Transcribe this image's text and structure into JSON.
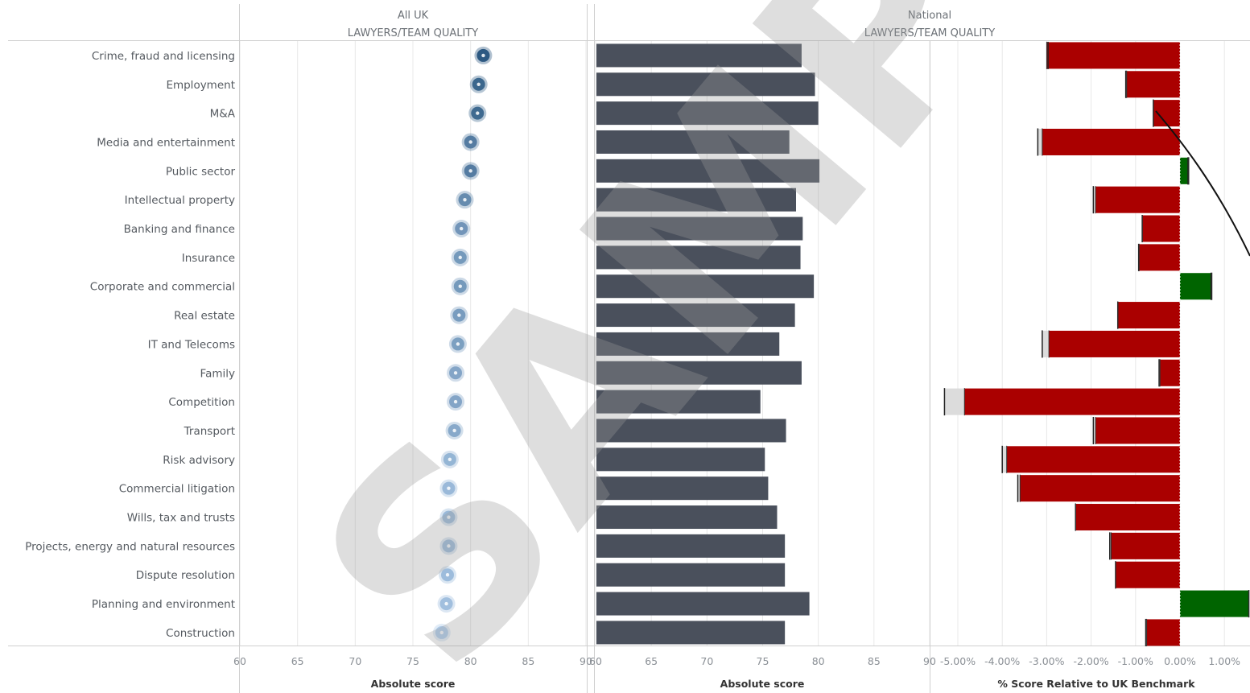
{
  "panels": {
    "left": {
      "top_label": "All UK",
      "sub_label": "LAWYERS/TEAM QUALITY",
      "axis_title": "Absolute score"
    },
    "right": {
      "top_label": "National",
      "sub_label": "LAWYERS/TEAM QUALITY"
    },
    "bars_axis_title": "Absolute score",
    "diff_axis_title": "% Score Relative to UK Benchmark"
  },
  "watermark": "SAMPLE",
  "colors": {
    "bar": "#4a505c",
    "negative": "#aa0000",
    "positive": "#006400",
    "dot_dark": "#1f4e79",
    "dot_light": "#a9c8e8",
    "grid": "#e8e8e8",
    "axis": "#cfcfcf"
  },
  "chart_data": [
    {
      "type": "scatter",
      "panel": "All UK",
      "xlabel": "Absolute score",
      "xlim": [
        60,
        90
      ],
      "ticks": [
        60,
        65,
        70,
        75,
        80,
        85,
        90
      ],
      "categories": [
        "Crime, fraud and licensing",
        "Employment",
        "M&A",
        "Media and entertainment",
        "Public sector",
        "Intellectual property",
        "Banking and finance",
        "Insurance",
        "Corporate and commercial",
        "Real estate",
        "IT and Telecoms",
        "Family",
        "Competition",
        "Transport",
        "Risk advisory",
        "Commercial litigation",
        "Wills, tax and trusts",
        "Projects, energy and natural resources",
        "Dispute resolution",
        "Planning and environment",
        "Construction"
      ],
      "values": [
        81.1,
        80.7,
        80.6,
        80.0,
        80.0,
        79.5,
        79.2,
        79.1,
        79.1,
        79.0,
        78.9,
        78.7,
        78.7,
        78.6,
        78.2,
        78.1,
        78.1,
        78.1,
        78.0,
        77.9,
        77.5
      ]
    },
    {
      "type": "bar",
      "panel": "National",
      "xlabel": "Absolute score",
      "xlim": [
        60,
        90
      ],
      "ticks": [
        60,
        65,
        70,
        75,
        80,
        85,
        90
      ],
      "categories": [
        "Crime, fraud and licensing",
        "Employment",
        "M&A",
        "Media and entertainment",
        "Public sector",
        "Intellectual property",
        "Banking and finance",
        "Insurance",
        "Corporate and commercial",
        "Real estate",
        "IT and Telecoms",
        "Family",
        "Competition",
        "Transport",
        "Risk advisory",
        "Commercial litigation",
        "Wills, tax and trusts",
        "Projects, energy and natural resources",
        "Dispute resolution",
        "Planning and environment",
        "Construction"
      ],
      "values": [
        78.5,
        79.7,
        80.0,
        77.4,
        80.1,
        78.0,
        78.6,
        78.4,
        79.6,
        77.9,
        76.5,
        78.5,
        74.8,
        77.1,
        75.2,
        75.5,
        76.3,
        77.0,
        77.0,
        79.2,
        77.0
      ]
    },
    {
      "type": "bar",
      "panel": "National",
      "xlabel": "% Score Relative to UK Benchmark",
      "xlim": [
        -5.3,
        1.6
      ],
      "ticks": [
        -5,
        -4,
        -3,
        -2,
        -1,
        0,
        1
      ],
      "tick_labels": [
        "-5.00%",
        "-4.00%",
        "-3.00%",
        "-2.00%",
        "-1.00%",
        "0.00%",
        "1.00%"
      ],
      "categories": [
        "Crime, fraud and licensing",
        "Employment",
        "M&A",
        "Media and entertainment",
        "Public sector",
        "Intellectual property",
        "Banking and finance",
        "Insurance",
        "Corporate and commercial",
        "Real estate",
        "IT and Telecoms",
        "Family",
        "Competition",
        "Transport",
        "Risk advisory",
        "Commercial litigation",
        "Wills, tax and trusts",
        "Projects, energy and natural resources",
        "Dispute resolution",
        "Planning and environment",
        "Construction"
      ],
      "values": [
        -3.0,
        -1.2,
        -0.6,
        -3.1,
        0.2,
        -1.9,
        -0.85,
        -0.92,
        0.72,
        -1.4,
        -2.95,
        -0.45,
        -4.85,
        -1.9,
        -3.9,
        -3.6,
        -2.35,
        -1.55,
        -1.45,
        1.55,
        -0.75
      ],
      "benchmark_marks": [
        -2.97,
        -1.22,
        -0.6,
        -3.2,
        0.18,
        -1.95,
        -0.85,
        -0.93,
        0.7,
        -1.4,
        -3.1,
        -0.47,
        -5.3,
        -1.95,
        -4.0,
        -3.65,
        -2.35,
        -1.58,
        -1.45,
        1.55,
        -0.77
      ]
    }
  ]
}
